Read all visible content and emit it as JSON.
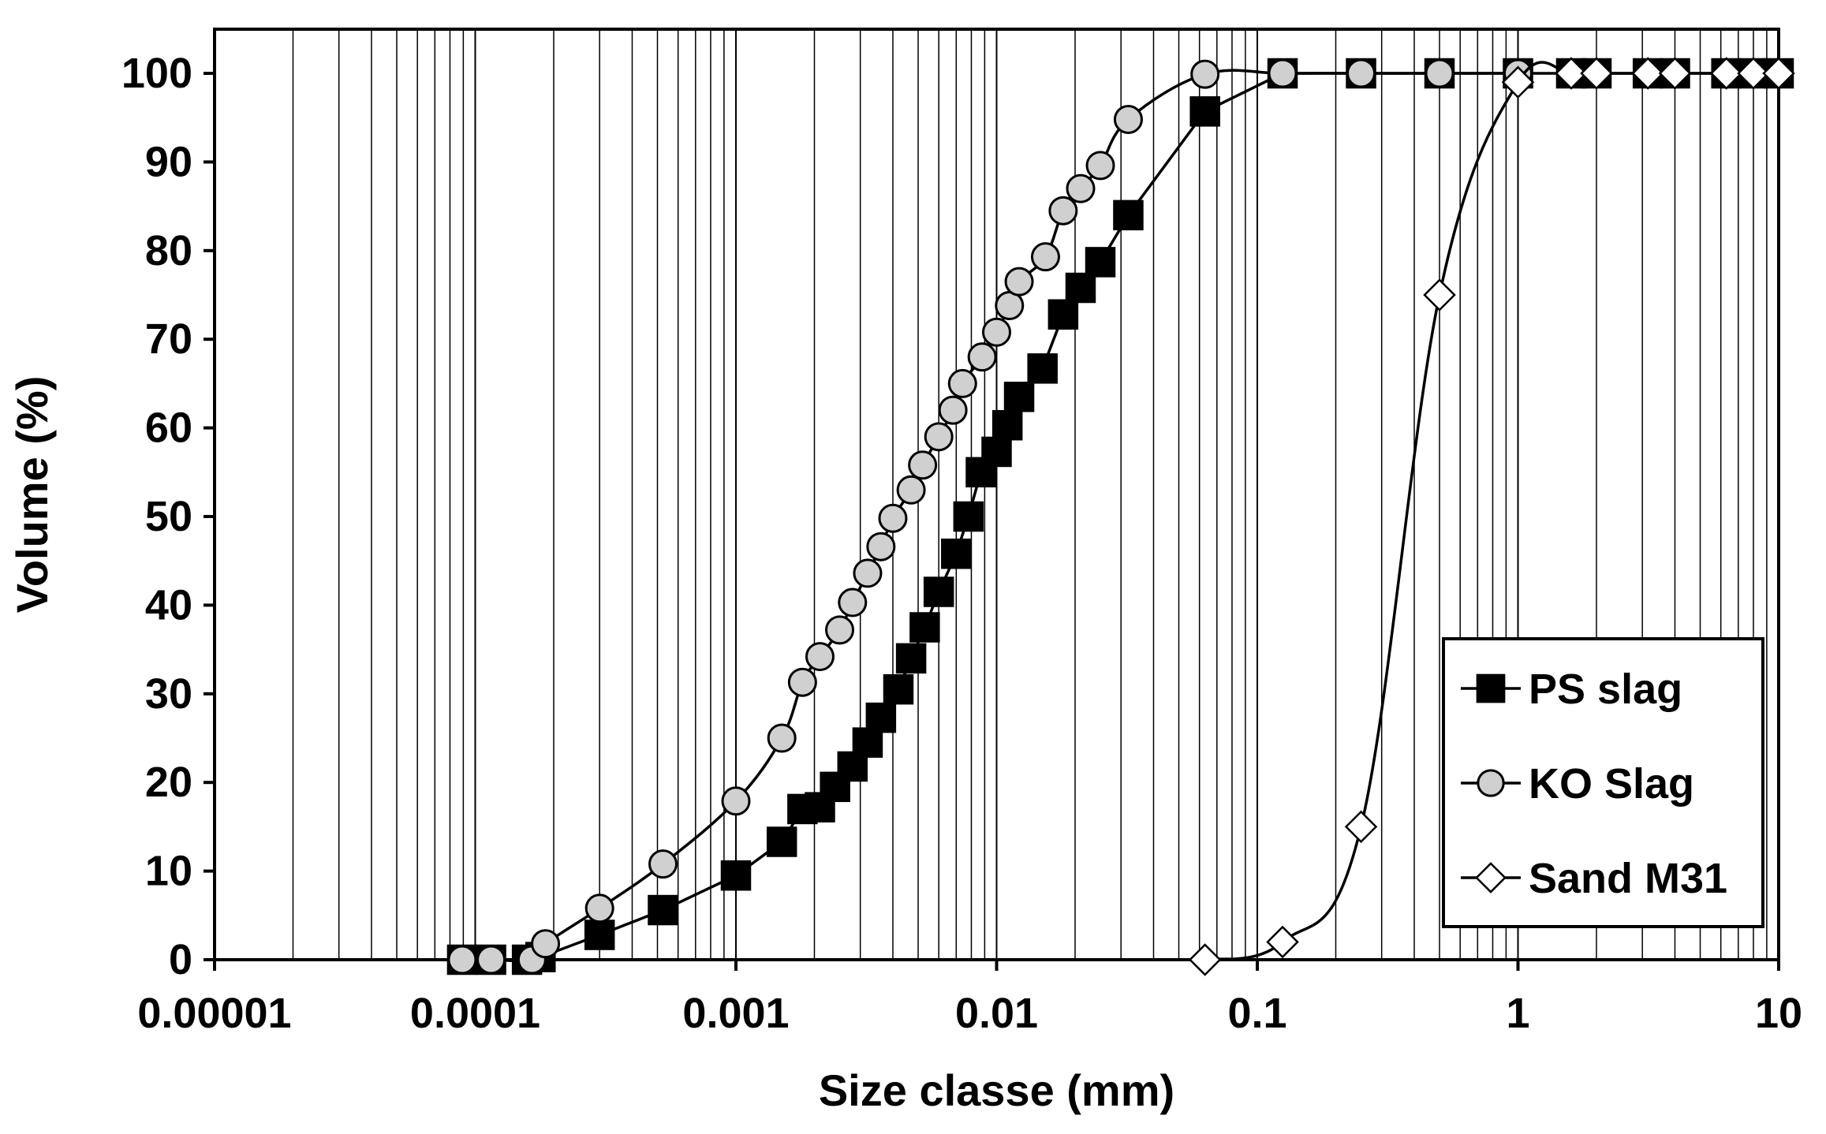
{
  "chart_data": {
    "type": "scatter",
    "xlabel": "Size classe (mm)",
    "ylabel": "Volume (%)",
    "xscale": "log",
    "xlim": [
      1e-05,
      10
    ],
    "ylim": [
      0,
      100
    ],
    "x_ticks": [
      "0.00001",
      "0.0001",
      "0.001",
      "0.01",
      "0.1",
      "1",
      "10"
    ],
    "y_ticks": [
      "0",
      "10",
      "20",
      "30",
      "40",
      "50",
      "60",
      "70",
      "80",
      "90",
      "100"
    ],
    "grid": "vertical minor and major gridlines",
    "legend_position": "bottom-right",
    "series": [
      {
        "name": "PS slag",
        "marker": "square",
        "marker_color": "#000000",
        "line": "straight",
        "points": [
          [
            8.91e-05,
            0
          ],
          [
            0.000115,
            0
          ],
          [
            0.000158,
            0
          ],
          [
            0.000178,
            0.3
          ],
          [
            0.0003,
            2.8
          ],
          [
            0.000525,
            5.6
          ],
          [
            0.001,
            9.5
          ],
          [
            0.0015,
            13.3
          ],
          [
            0.0018,
            17
          ],
          [
            0.0021,
            17.2
          ],
          [
            0.0024,
            19.5
          ],
          [
            0.0028,
            21.8
          ],
          [
            0.0032,
            24.5
          ],
          [
            0.0036,
            27.3
          ],
          [
            0.0042,
            30.5
          ],
          [
            0.0047,
            34
          ],
          [
            0.0053,
            37.5
          ],
          [
            0.006,
            41.5
          ],
          [
            0.007,
            45.8
          ],
          [
            0.0078,
            50
          ],
          [
            0.0087,
            55
          ],
          [
            0.01,
            57.3
          ],
          [
            0.011,
            60.3
          ],
          [
            0.0122,
            63.5
          ],
          [
            0.015,
            66.7
          ],
          [
            0.018,
            72.8
          ],
          [
            0.021,
            75.8
          ],
          [
            0.025,
            78.7
          ],
          [
            0.032,
            84
          ],
          [
            0.063,
            95.7
          ],
          [
            0.125,
            100
          ],
          [
            0.25,
            100
          ],
          [
            0.5,
            100
          ],
          [
            1,
            100
          ],
          [
            1.6,
            100
          ],
          [
            2,
            100
          ],
          [
            3.15,
            100
          ],
          [
            4,
            100
          ],
          [
            6.3,
            100
          ],
          [
            8,
            100
          ],
          [
            10,
            100
          ]
        ]
      },
      {
        "name": "KO Slag",
        "marker": "circle",
        "marker_color": "#d0d0d0",
        "line": "smooth",
        "points": [
          [
            8.91e-05,
            0
          ],
          [
            0.000115,
            0
          ],
          [
            0.000165,
            0
          ],
          [
            0.000186,
            1.8
          ],
          [
            0.0003,
            5.8
          ],
          [
            0.000525,
            10.8
          ],
          [
            0.001,
            17.9
          ],
          [
            0.0015,
            25
          ],
          [
            0.0018,
            31.3
          ],
          [
            0.0021,
            34.2
          ],
          [
            0.0025,
            37.2
          ],
          [
            0.0028,
            40.3
          ],
          [
            0.0032,
            43.6
          ],
          [
            0.0036,
            46.6
          ],
          [
            0.004,
            49.8
          ],
          [
            0.0047,
            53
          ],
          [
            0.0052,
            55.8
          ],
          [
            0.006,
            59
          ],
          [
            0.0068,
            62
          ],
          [
            0.0074,
            65
          ],
          [
            0.0088,
            68
          ],
          [
            0.01,
            70.8
          ],
          [
            0.0112,
            73.8
          ],
          [
            0.0122,
            76.5
          ],
          [
            0.0154,
            79.3
          ],
          [
            0.018,
            84.5
          ],
          [
            0.021,
            87
          ],
          [
            0.025,
            89.6
          ],
          [
            0.032,
            94.8
          ],
          [
            0.063,
            99.9
          ],
          [
            0.125,
            100
          ],
          [
            0.25,
            100
          ],
          [
            0.5,
            100
          ],
          [
            1,
            100
          ]
        ]
      },
      {
        "name": "Sand M31",
        "marker": "diamond",
        "marker_color": "#ffffff",
        "line": "smooth",
        "points": [
          [
            0.063,
            0
          ],
          [
            0.125,
            2
          ],
          [
            0.25,
            15
          ],
          [
            0.5,
            75
          ],
          [
            1,
            99
          ],
          [
            1.6,
            100
          ],
          [
            2,
            100
          ],
          [
            3.15,
            100
          ],
          [
            4,
            100
          ],
          [
            6.3,
            100
          ],
          [
            8,
            100
          ],
          [
            10,
            100
          ]
        ]
      }
    ]
  }
}
